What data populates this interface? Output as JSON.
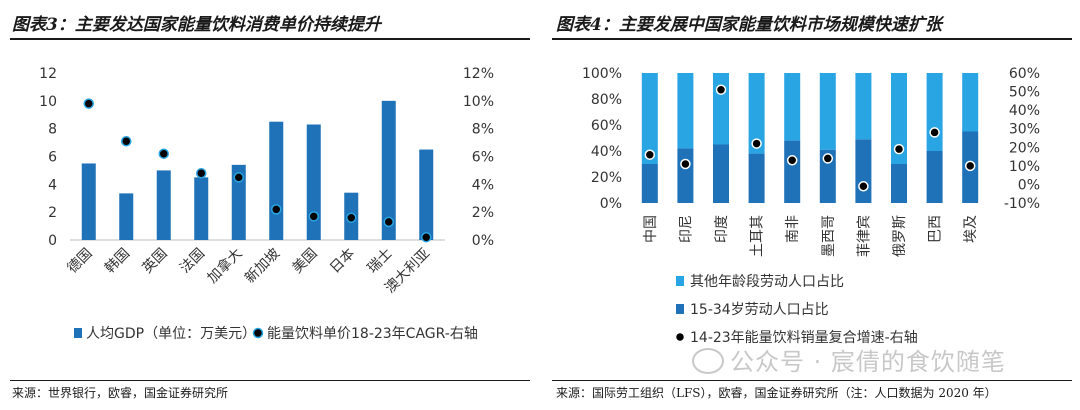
{
  "left_panel": {
    "title": "图表3：主要发达国家能量饮料消费单价持续提升",
    "source": "来源：世界银行，欧睿，国金证券研究所"
  },
  "right_panel": {
    "title": "图表4：主要发展中国家能量饮料市场规模快速扩张",
    "source": "来源：国际劳工组织（LFS），欧睿，国金证券研究所（注：人口数据为 2020 年）"
  },
  "watermark": "公众号 · 宸倩的食饮随笔",
  "colors": {
    "bar_dark": "#1f72b8",
    "bar_light": "#29a5e3",
    "dot": "#000000",
    "text": "#333333"
  },
  "chart_data": [
    {
      "type": "bar",
      "categories": [
        "德国",
        "韩国",
        "英国",
        "法国",
        "加拿大",
        "新加坡",
        "美国",
        "日本",
        "瑞士",
        "澳大利亚"
      ],
      "series": [
        {
          "name": "人均GDP（单位：万美元）",
          "kind": "bar",
          "axis": "left",
          "values": [
            5.5,
            3.35,
            5.0,
            4.5,
            5.4,
            8.5,
            8.3,
            3.4,
            10.0,
            6.5
          ]
        },
        {
          "name": "能量饮料单价18-23年CAGR-右轴",
          "kind": "scatter",
          "axis": "right",
          "values": [
            9.8,
            7.1,
            6.2,
            4.8,
            4.5,
            2.2,
            1.7,
            1.6,
            1.3,
            0.2
          ]
        }
      ],
      "ylim": [
        0,
        12
      ],
      "yticks": [
        "0",
        "2",
        "4",
        "6",
        "8",
        "10",
        "12"
      ],
      "y2lim": [
        0,
        12
      ],
      "y2ticks": [
        "0%",
        "2%",
        "4%",
        "6%",
        "8%",
        "10%",
        "12%"
      ],
      "legend": "bottom"
    },
    {
      "type": "bar",
      "stacked": true,
      "categories": [
        "中国",
        "印尼",
        "印度",
        "土耳其",
        "南非",
        "墨西哥",
        "菲律宾",
        "俄罗斯",
        "巴西",
        "埃及"
      ],
      "series": [
        {
          "name": "其他年龄段劳动人口占比",
          "kind": "bar",
          "axis": "left",
          "values": [
            70,
            58,
            55,
            62,
            52,
            59,
            51,
            70,
            60,
            45
          ]
        },
        {
          "name": "15-34岁劳动人口占比",
          "kind": "bar",
          "axis": "left",
          "values": [
            30,
            42,
            45,
            38,
            48,
            41,
            49,
            30,
            40,
            55
          ]
        },
        {
          "name": "14-23年能量饮料销量复合增速-右轴",
          "kind": "scatter",
          "axis": "right",
          "values": [
            16,
            11,
            51,
            22,
            13,
            14,
            -1,
            19,
            28,
            10
          ]
        }
      ],
      "ylim": [
        0,
        100
      ],
      "yticks": [
        "0%",
        "20%",
        "40%",
        "60%",
        "80%",
        "100%"
      ],
      "y2lim": [
        -10,
        60
      ],
      "y2ticks": [
        "-10%",
        "0%",
        "10%",
        "20%",
        "30%",
        "40%",
        "50%",
        "60%"
      ],
      "legend": "bottom"
    }
  ]
}
